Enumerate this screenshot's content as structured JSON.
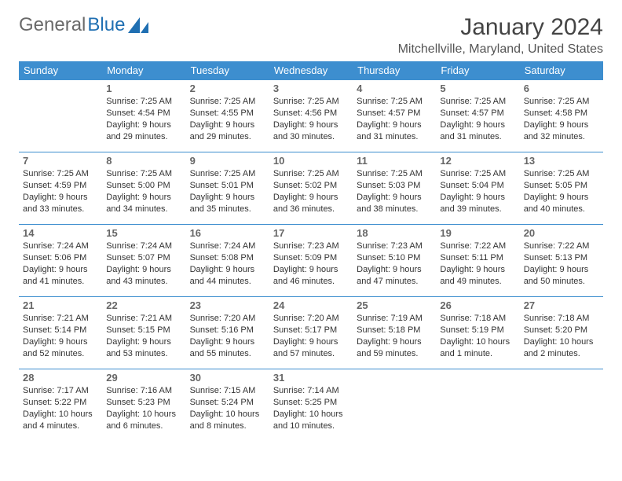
{
  "brand": {
    "part1": "General",
    "part2": "Blue"
  },
  "title": "January 2024",
  "location": "Mitchellville, Maryland, United States",
  "colors": {
    "header_bg": "#3d8ecf",
    "header_text": "#ffffff",
    "brand_gray": "#6a6a6a",
    "brand_blue": "#1f6fb2",
    "text": "#333333",
    "rule": "#3d8ecf"
  },
  "weekdays": [
    "Sunday",
    "Monday",
    "Tuesday",
    "Wednesday",
    "Thursday",
    "Friday",
    "Saturday"
  ],
  "weeks": [
    [
      null,
      {
        "n": "1",
        "sr": "Sunrise: 7:25 AM",
        "ss": "Sunset: 4:54 PM",
        "dl1": "Daylight: 9 hours",
        "dl2": "and 29 minutes."
      },
      {
        "n": "2",
        "sr": "Sunrise: 7:25 AM",
        "ss": "Sunset: 4:55 PM",
        "dl1": "Daylight: 9 hours",
        "dl2": "and 29 minutes."
      },
      {
        "n": "3",
        "sr": "Sunrise: 7:25 AM",
        "ss": "Sunset: 4:56 PM",
        "dl1": "Daylight: 9 hours",
        "dl2": "and 30 minutes."
      },
      {
        "n": "4",
        "sr": "Sunrise: 7:25 AM",
        "ss": "Sunset: 4:57 PM",
        "dl1": "Daylight: 9 hours",
        "dl2": "and 31 minutes."
      },
      {
        "n": "5",
        "sr": "Sunrise: 7:25 AM",
        "ss": "Sunset: 4:57 PM",
        "dl1": "Daylight: 9 hours",
        "dl2": "and 31 minutes."
      },
      {
        "n": "6",
        "sr": "Sunrise: 7:25 AM",
        "ss": "Sunset: 4:58 PM",
        "dl1": "Daylight: 9 hours",
        "dl2": "and 32 minutes."
      }
    ],
    [
      {
        "n": "7",
        "sr": "Sunrise: 7:25 AM",
        "ss": "Sunset: 4:59 PM",
        "dl1": "Daylight: 9 hours",
        "dl2": "and 33 minutes."
      },
      {
        "n": "8",
        "sr": "Sunrise: 7:25 AM",
        "ss": "Sunset: 5:00 PM",
        "dl1": "Daylight: 9 hours",
        "dl2": "and 34 minutes."
      },
      {
        "n": "9",
        "sr": "Sunrise: 7:25 AM",
        "ss": "Sunset: 5:01 PM",
        "dl1": "Daylight: 9 hours",
        "dl2": "and 35 minutes."
      },
      {
        "n": "10",
        "sr": "Sunrise: 7:25 AM",
        "ss": "Sunset: 5:02 PM",
        "dl1": "Daylight: 9 hours",
        "dl2": "and 36 minutes."
      },
      {
        "n": "11",
        "sr": "Sunrise: 7:25 AM",
        "ss": "Sunset: 5:03 PM",
        "dl1": "Daylight: 9 hours",
        "dl2": "and 38 minutes."
      },
      {
        "n": "12",
        "sr": "Sunrise: 7:25 AM",
        "ss": "Sunset: 5:04 PM",
        "dl1": "Daylight: 9 hours",
        "dl2": "and 39 minutes."
      },
      {
        "n": "13",
        "sr": "Sunrise: 7:25 AM",
        "ss": "Sunset: 5:05 PM",
        "dl1": "Daylight: 9 hours",
        "dl2": "and 40 minutes."
      }
    ],
    [
      {
        "n": "14",
        "sr": "Sunrise: 7:24 AM",
        "ss": "Sunset: 5:06 PM",
        "dl1": "Daylight: 9 hours",
        "dl2": "and 41 minutes."
      },
      {
        "n": "15",
        "sr": "Sunrise: 7:24 AM",
        "ss": "Sunset: 5:07 PM",
        "dl1": "Daylight: 9 hours",
        "dl2": "and 43 minutes."
      },
      {
        "n": "16",
        "sr": "Sunrise: 7:24 AM",
        "ss": "Sunset: 5:08 PM",
        "dl1": "Daylight: 9 hours",
        "dl2": "and 44 minutes."
      },
      {
        "n": "17",
        "sr": "Sunrise: 7:23 AM",
        "ss": "Sunset: 5:09 PM",
        "dl1": "Daylight: 9 hours",
        "dl2": "and 46 minutes."
      },
      {
        "n": "18",
        "sr": "Sunrise: 7:23 AM",
        "ss": "Sunset: 5:10 PM",
        "dl1": "Daylight: 9 hours",
        "dl2": "and 47 minutes."
      },
      {
        "n": "19",
        "sr": "Sunrise: 7:22 AM",
        "ss": "Sunset: 5:11 PM",
        "dl1": "Daylight: 9 hours",
        "dl2": "and 49 minutes."
      },
      {
        "n": "20",
        "sr": "Sunrise: 7:22 AM",
        "ss": "Sunset: 5:13 PM",
        "dl1": "Daylight: 9 hours",
        "dl2": "and 50 minutes."
      }
    ],
    [
      {
        "n": "21",
        "sr": "Sunrise: 7:21 AM",
        "ss": "Sunset: 5:14 PM",
        "dl1": "Daylight: 9 hours",
        "dl2": "and 52 minutes."
      },
      {
        "n": "22",
        "sr": "Sunrise: 7:21 AM",
        "ss": "Sunset: 5:15 PM",
        "dl1": "Daylight: 9 hours",
        "dl2": "and 53 minutes."
      },
      {
        "n": "23",
        "sr": "Sunrise: 7:20 AM",
        "ss": "Sunset: 5:16 PM",
        "dl1": "Daylight: 9 hours",
        "dl2": "and 55 minutes."
      },
      {
        "n": "24",
        "sr": "Sunrise: 7:20 AM",
        "ss": "Sunset: 5:17 PM",
        "dl1": "Daylight: 9 hours",
        "dl2": "and 57 minutes."
      },
      {
        "n": "25",
        "sr": "Sunrise: 7:19 AM",
        "ss": "Sunset: 5:18 PM",
        "dl1": "Daylight: 9 hours",
        "dl2": "and 59 minutes."
      },
      {
        "n": "26",
        "sr": "Sunrise: 7:18 AM",
        "ss": "Sunset: 5:19 PM",
        "dl1": "Daylight: 10 hours",
        "dl2": "and 1 minute."
      },
      {
        "n": "27",
        "sr": "Sunrise: 7:18 AM",
        "ss": "Sunset: 5:20 PM",
        "dl1": "Daylight: 10 hours",
        "dl2": "and 2 minutes."
      }
    ],
    [
      {
        "n": "28",
        "sr": "Sunrise: 7:17 AM",
        "ss": "Sunset: 5:22 PM",
        "dl1": "Daylight: 10 hours",
        "dl2": "and 4 minutes."
      },
      {
        "n": "29",
        "sr": "Sunrise: 7:16 AM",
        "ss": "Sunset: 5:23 PM",
        "dl1": "Daylight: 10 hours",
        "dl2": "and 6 minutes."
      },
      {
        "n": "30",
        "sr": "Sunrise: 7:15 AM",
        "ss": "Sunset: 5:24 PM",
        "dl1": "Daylight: 10 hours",
        "dl2": "and 8 minutes."
      },
      {
        "n": "31",
        "sr": "Sunrise: 7:14 AM",
        "ss": "Sunset: 5:25 PM",
        "dl1": "Daylight: 10 hours",
        "dl2": "and 10 minutes."
      },
      null,
      null,
      null
    ]
  ]
}
